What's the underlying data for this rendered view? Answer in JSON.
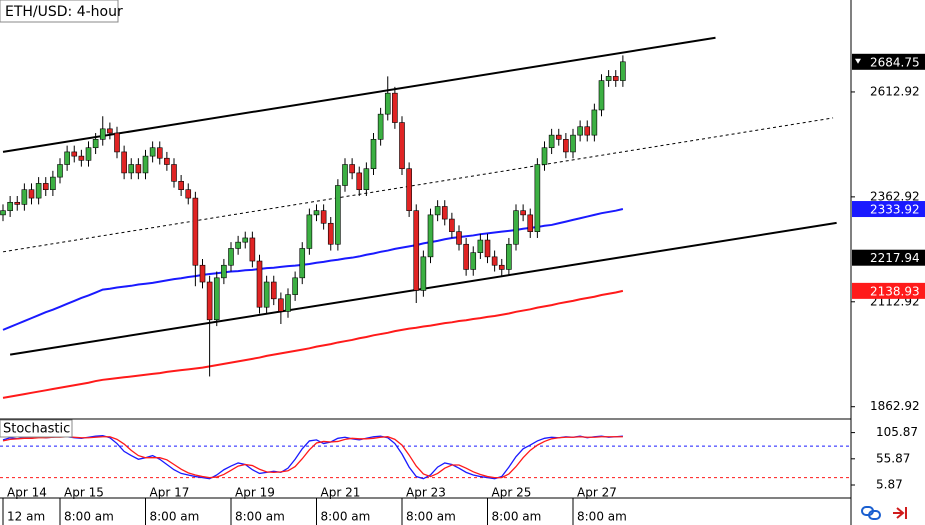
{
  "chart_data": {
    "type": "candlestick",
    "title": "ETH/USD: 4-hour",
    "ylim": [
      1836,
      2832
    ],
    "yticks": [
      1862.92,
      2112.92,
      2362.92,
      2612.92
    ],
    "up_color": "#3cb043",
    "down_color": "#e02424",
    "open": [
      2320,
      2330,
      2350,
      2345,
      2380,
      2360,
      2395,
      2380,
      2410,
      2440,
      2470,
      2460,
      2450,
      2480,
      2500,
      2525,
      2515,
      2470,
      2420,
      2440,
      2420,
      2460,
      2480,
      2455,
      2440,
      2400,
      2380,
      2360,
      2200,
      2160,
      2070,
      2170,
      2200,
      2240,
      2255,
      2265,
      2210,
      2100,
      2160,
      2120,
      2090,
      2130,
      2170,
      2240,
      2320,
      2330,
      2300,
      2250,
      2390,
      2440,
      2420,
      2380,
      2430,
      2500,
      2560,
      2610,
      2540,
      2430,
      2330,
      2140,
      2220,
      2320,
      2340,
      2310,
      2280,
      2250,
      2190,
      2230,
      2260,
      2220,
      2200,
      2190,
      2250,
      2330,
      2320,
      2280,
      2440,
      2480,
      2510,
      2500,
      2470,
      2510,
      2530,
      2510,
      2570,
      2640,
      2650,
      2640
    ],
    "high": [
      2345,
      2365,
      2365,
      2395,
      2395,
      2410,
      2410,
      2425,
      2455,
      2485,
      2485,
      2475,
      2495,
      2515,
      2555,
      2540,
      2530,
      2485,
      2455,
      2455,
      2475,
      2495,
      2495,
      2470,
      2455,
      2415,
      2395,
      2375,
      2215,
      2175,
      2185,
      2215,
      2255,
      2270,
      2280,
      2280,
      2225,
      2175,
      2175,
      2135,
      2145,
      2185,
      2255,
      2335,
      2345,
      2345,
      2315,
      2405,
      2455,
      2455,
      2435,
      2445,
      2515,
      2575,
      2650,
      2625,
      2555,
      2445,
      2345,
      2235,
      2335,
      2355,
      2355,
      2325,
      2295,
      2265,
      2245,
      2275,
      2275,
      2235,
      2215,
      2265,
      2345,
      2345,
      2335,
      2455,
      2495,
      2525,
      2525,
      2515,
      2525,
      2545,
      2545,
      2585,
      2655,
      2665,
      2665,
      2700
    ],
    "low": [
      2305,
      2315,
      2330,
      2330,
      2345,
      2345,
      2365,
      2365,
      2395,
      2425,
      2445,
      2435,
      2435,
      2465,
      2485,
      2500,
      2455,
      2405,
      2405,
      2405,
      2405,
      2445,
      2440,
      2425,
      2385,
      2365,
      2345,
      2150,
      2145,
      1935,
      2055,
      2155,
      2185,
      2225,
      2240,
      2195,
      2085,
      2085,
      2105,
      2060,
      2075,
      2115,
      2155,
      2225,
      2305,
      2285,
      2235,
      2235,
      2375,
      2405,
      2365,
      2365,
      2415,
      2485,
      2545,
      2525,
      2415,
      2315,
      2110,
      2125,
      2205,
      2305,
      2295,
      2265,
      2235,
      2175,
      2175,
      2215,
      2205,
      2185,
      2175,
      2175,
      2235,
      2305,
      2265,
      2265,
      2425,
      2465,
      2485,
      2455,
      2455,
      2495,
      2495,
      2495,
      2555,
      2625,
      2625,
      2625
    ],
    "close": [
      2330,
      2350,
      2345,
      2380,
      2360,
      2395,
      2380,
      2410,
      2440,
      2470,
      2460,
      2450,
      2480,
      2500,
      2525,
      2515,
      2470,
      2420,
      2440,
      2420,
      2460,
      2480,
      2455,
      2440,
      2400,
      2380,
      2360,
      2200,
      2160,
      2070,
      2170,
      2200,
      2240,
      2255,
      2265,
      2210,
      2100,
      2160,
      2120,
      2090,
      2130,
      2170,
      2240,
      2320,
      2330,
      2300,
      2250,
      2390,
      2440,
      2420,
      2380,
      2430,
      2500,
      2560,
      2610,
      2540,
      2430,
      2330,
      2140,
      2220,
      2320,
      2340,
      2310,
      2280,
      2250,
      2190,
      2230,
      2260,
      2220,
      2200,
      2190,
      2250,
      2330,
      2320,
      2280,
      2440,
      2480,
      2510,
      2500,
      2470,
      2510,
      2530,
      2510,
      2570,
      2640,
      2650,
      2640,
      2684.75
    ],
    "moving_averages": [
      {
        "color": "#1a1aff",
        "values": [
          2046,
          2053,
          2060,
          2067,
          2074,
          2081,
          2088,
          2094,
          2101,
          2108,
          2115,
          2122,
          2128,
          2135,
          2142,
          2144,
          2147,
          2149,
          2151,
          2154,
          2156,
          2158,
          2161,
          2164,
          2167,
          2169,
          2172,
          2174,
          2177,
          2179,
          2181,
          2183,
          2185,
          2186,
          2188,
          2189,
          2191,
          2193,
          2194,
          2196,
          2198,
          2199,
          2201,
          2203,
          2206,
          2208,
          2211,
          2213,
          2216,
          2218,
          2221,
          2225,
          2228,
          2232,
          2235,
          2239,
          2242,
          2245,
          2248,
          2252,
          2255,
          2258,
          2262,
          2265,
          2267,
          2269,
          2271,
          2274,
          2276,
          2278,
          2280,
          2282,
          2284,
          2287,
          2289,
          2291,
          2294,
          2296,
          2300,
          2304,
          2308,
          2312,
          2316,
          2320,
          2324,
          2327,
          2330,
          2333.92
        ]
      },
      {
        "color": "#ff1a1a",
        "values": [
          1884,
          1887,
          1890,
          1893,
          1896,
          1899,
          1902,
          1905,
          1908,
          1911,
          1914,
          1917,
          1920,
          1924,
          1927,
          1929,
          1931,
          1933,
          1935,
          1937,
          1939,
          1941,
          1943,
          1946,
          1948,
          1950,
          1952,
          1954,
          1956,
          1959,
          1962,
          1965,
          1968,
          1971,
          1974,
          1977,
          1980,
          1984,
          1987,
          1990,
          1993,
          1996,
          1999,
          2002,
          2006,
          2009,
          2012,
          2016,
          2019,
          2022,
          2026,
          2029,
          2033,
          2036,
          2039,
          2043,
          2046,
          2049,
          2051,
          2054,
          2056,
          2059,
          2062,
          2064,
          2067,
          2069,
          2072,
          2074,
          2077,
          2079,
          2082,
          2085,
          2089,
          2092,
          2095,
          2099,
          2102,
          2105,
          2109,
          2112,
          2115,
          2119,
          2122,
          2125,
          2129,
          2132,
          2135,
          2138.93
        ]
      }
    ],
    "trendlines": [
      {
        "style": "solid",
        "x": [
          0,
          100
        ],
        "y": [
          2470,
          2742
        ]
      },
      {
        "style": "dashed",
        "x": [
          0,
          116.5
        ],
        "y": [
          2232,
          2551
        ]
      },
      {
        "style": "solid",
        "x": [
          1,
          117
        ],
        "y": [
          1987,
          2301
        ]
      }
    ],
    "channel_tag": {
      "value": 2217.94,
      "color": "#000000"
    },
    "time_labels": [
      {
        "index": 0,
        "date": "Apr 14",
        "time": "12 am"
      },
      {
        "index": 8,
        "date": "Apr 15",
        "time": "8:00 am"
      },
      {
        "index": 20,
        "date": "Apr 17",
        "time": "8:00 am"
      },
      {
        "index": 32,
        "date": "Apr 19",
        "time": "8:00 am"
      },
      {
        "index": 44,
        "date": "Apr 21",
        "time": "8:00 am"
      },
      {
        "index": 56,
        "date": "Apr 23",
        "time": "8:00 am"
      },
      {
        "index": 68,
        "date": "Apr 25",
        "time": "8:00 am"
      },
      {
        "index": 80,
        "date": "Apr 27",
        "time": "8:00 am"
      }
    ],
    "stochastic": {
      "title": "Stochastic",
      "ylim": [
        -17,
        128
      ],
      "yticks": [
        5.87,
        55.87,
        105.87
      ],
      "levels": [
        {
          "value": 80,
          "color": "#1a1aff"
        },
        {
          "value": 20,
          "color": "#ff1a1a"
        }
      ],
      "series": [
        {
          "color": "#1a1aff",
          "values": [
            92,
            96,
            94,
            97,
            95,
            98,
            96,
            97,
            99,
            98,
            96,
            95,
            97,
            99,
            100,
            96,
            85,
            70,
            62,
            55,
            58,
            62,
            55,
            45,
            35,
            28,
            25,
            22,
            20,
            18,
            25,
            35,
            42,
            48,
            45,
            35,
            28,
            30,
            32,
            30,
            38,
            55,
            75,
            90,
            92,
            85,
            88,
            95,
            97,
            94,
            92,
            95,
            98,
            99,
            96,
            85,
            65,
            40,
            22,
            18,
            25,
            40,
            48,
            45,
            38,
            30,
            25,
            22,
            20,
            18,
            22,
            40,
            60,
            75,
            82,
            90,
            95,
            97,
            96,
            98,
            97,
            99,
            96,
            98,
            99,
            97,
            98,
            99
          ]
        },
        {
          "color": "#ff1a1a",
          "values": [
            90,
            93,
            94,
            95,
            95,
            96,
            96,
            97,
            97,
            98,
            97,
            96,
            96,
            97,
            98,
            98,
            93,
            84,
            72,
            62,
            58,
            58,
            58,
            54,
            45,
            36,
            29,
            25,
            22,
            20,
            21,
            26,
            34,
            42,
            45,
            43,
            36,
            31,
            30,
            31,
            33,
            41,
            56,
            73,
            86,
            89,
            88,
            89,
            93,
            95,
            94,
            94,
            95,
            97,
            98,
            93,
            82,
            63,
            42,
            27,
            22,
            28,
            38,
            44,
            44,
            38,
            31,
            26,
            22,
            20,
            20,
            27,
            41,
            58,
            72,
            82,
            89,
            94,
            96,
            97,
            97,
            98,
            97,
            97,
            98,
            98,
            98,
            98
          ]
        }
      ]
    }
  }
}
